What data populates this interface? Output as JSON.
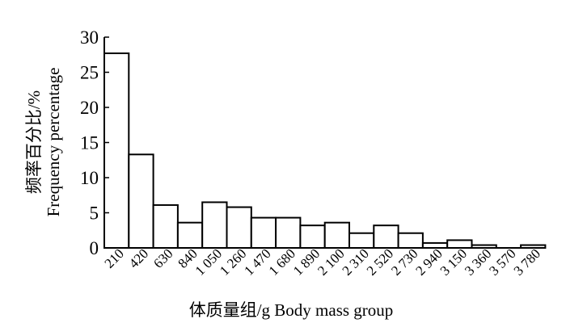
{
  "chart_data": {
    "type": "bar",
    "categories": [
      "210",
      "420",
      "630",
      "840",
      "1 050",
      "1 260",
      "1 470",
      "1 680",
      "1 890",
      "2 100",
      "2 310",
      "2 520",
      "2 730",
      "2 940",
      "3 150",
      "3 360",
      "3 570",
      "3 780"
    ],
    "values": [
      27.7,
      13.3,
      6.1,
      3.6,
      6.5,
      5.8,
      4.3,
      4.3,
      3.2,
      3.6,
      2.1,
      3.2,
      2.1,
      0.7,
      1.1,
      0.4,
      0.0,
      0.4
    ],
    "yticks": [
      "0",
      "5",
      "10",
      "15",
      "20",
      "25",
      "30"
    ],
    "ylim": [
      0,
      30
    ],
    "ylabel_cn": "频率百分比/%",
    "ylabel_en": "Frequency percentage",
    "xlabel": "体质量组/g Body mass group",
    "grid": false,
    "colors": {
      "bar_fill": "#ffffff",
      "bar_stroke": "#000000"
    }
  }
}
